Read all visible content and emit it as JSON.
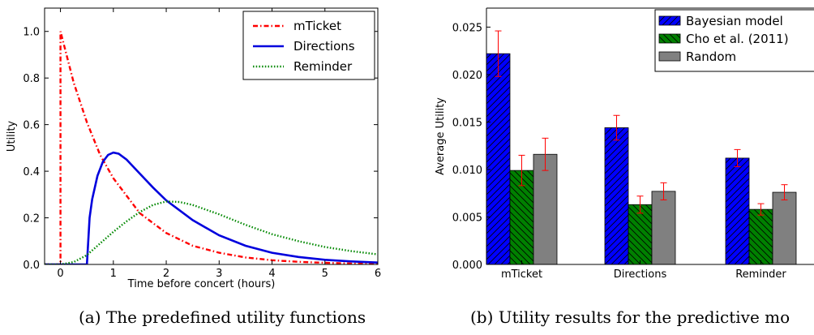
{
  "captions": {
    "a": "(a) The predefined utility functions",
    "b": "(b) Utility results for the predictive mo"
  },
  "chart_data": [
    {
      "type": "line",
      "xlabel": "Time before concert (hours)",
      "ylabel": "Utility",
      "xlim": [
        -0.3,
        6
      ],
      "ylim": [
        0,
        1.1
      ],
      "xticks": [
        "0",
        "1",
        "2",
        "3",
        "4",
        "5",
        "6"
      ],
      "yticks": [
        "0.0",
        "0.2",
        "0.4",
        "0.6",
        "0.8",
        "1.0"
      ],
      "legend_position": "top-right",
      "grid": false,
      "series": [
        {
          "name": "mTicket",
          "color": "#ff0000",
          "style": "dashdot",
          "x": [
            -0.3,
            0,
            0,
            0.25,
            0.5,
            0.75,
            1.0,
            1.5,
            2.0,
            2.5,
            3.0,
            3.5,
            4.0,
            4.5,
            5.0,
            5.5,
            6.0
          ],
          "y": [
            0,
            0,
            1.0,
            0.78,
            0.61,
            0.47,
            0.37,
            0.22,
            0.135,
            0.08,
            0.05,
            0.03,
            0.018,
            0.011,
            0.007,
            0.004,
            0.002
          ]
        },
        {
          "name": "Directions",
          "color": "#0000dd",
          "style": "solid",
          "x": [
            -0.3,
            0.5,
            0.5,
            0.55,
            0.6,
            0.7,
            0.8,
            0.9,
            1.0,
            1.1,
            1.25,
            1.5,
            1.75,
            2.0,
            2.5,
            3.0,
            3.5,
            4.0,
            4.5,
            5.0,
            5.5,
            6.0
          ],
          "y": [
            0,
            0,
            0,
            0.2,
            0.28,
            0.38,
            0.44,
            0.47,
            0.48,
            0.475,
            0.45,
            0.39,
            0.33,
            0.275,
            0.19,
            0.125,
            0.08,
            0.05,
            0.032,
            0.02,
            0.013,
            0.008
          ]
        },
        {
          "name": "Reminder",
          "color": "#008800",
          "style": "dotted",
          "x": [
            -0.3,
            0,
            0.25,
            0.5,
            0.75,
            1.0,
            1.25,
            1.5,
            1.75,
            2.0,
            2.25,
            2.5,
            3.0,
            3.5,
            4.0,
            4.5,
            5.0,
            5.5,
            6.0
          ],
          "y": [
            0,
            0,
            0.01,
            0.04,
            0.09,
            0.14,
            0.185,
            0.225,
            0.255,
            0.27,
            0.268,
            0.255,
            0.215,
            0.17,
            0.13,
            0.1,
            0.075,
            0.057,
            0.043
          ]
        }
      ]
    },
    {
      "type": "bar",
      "ylabel": "Average Utility",
      "xlabel": "",
      "categories": [
        "mTicket",
        "Directions",
        "Reminder"
      ],
      "ylim": [
        0,
        0.027
      ],
      "yticks": [
        "0.000",
        "0.005",
        "0.010",
        "0.015",
        "0.020",
        "0.025"
      ],
      "legend_position": "top-right",
      "grid": false,
      "error_bar_color": "#ff0000",
      "series": [
        {
          "name": "Bayesian model",
          "color": "#0000ff",
          "hatch": "forward-diagonal",
          "values": [
            0.0222,
            0.0144,
            0.0112
          ],
          "errors": [
            0.0024,
            0.0013,
            0.0009
          ]
        },
        {
          "name": "Cho et al. (2011)",
          "color": "#008000",
          "hatch": "back-diagonal",
          "values": [
            0.0099,
            0.0063,
            0.0058
          ],
          "errors": [
            0.0016,
            0.0009,
            0.0006
          ]
        },
        {
          "name": "Random",
          "color": "#808080",
          "hatch": "none",
          "values": [
            0.0116,
            0.0077,
            0.0076
          ],
          "errors": [
            0.0017,
            0.0009,
            0.0008
          ]
        }
      ]
    }
  ]
}
